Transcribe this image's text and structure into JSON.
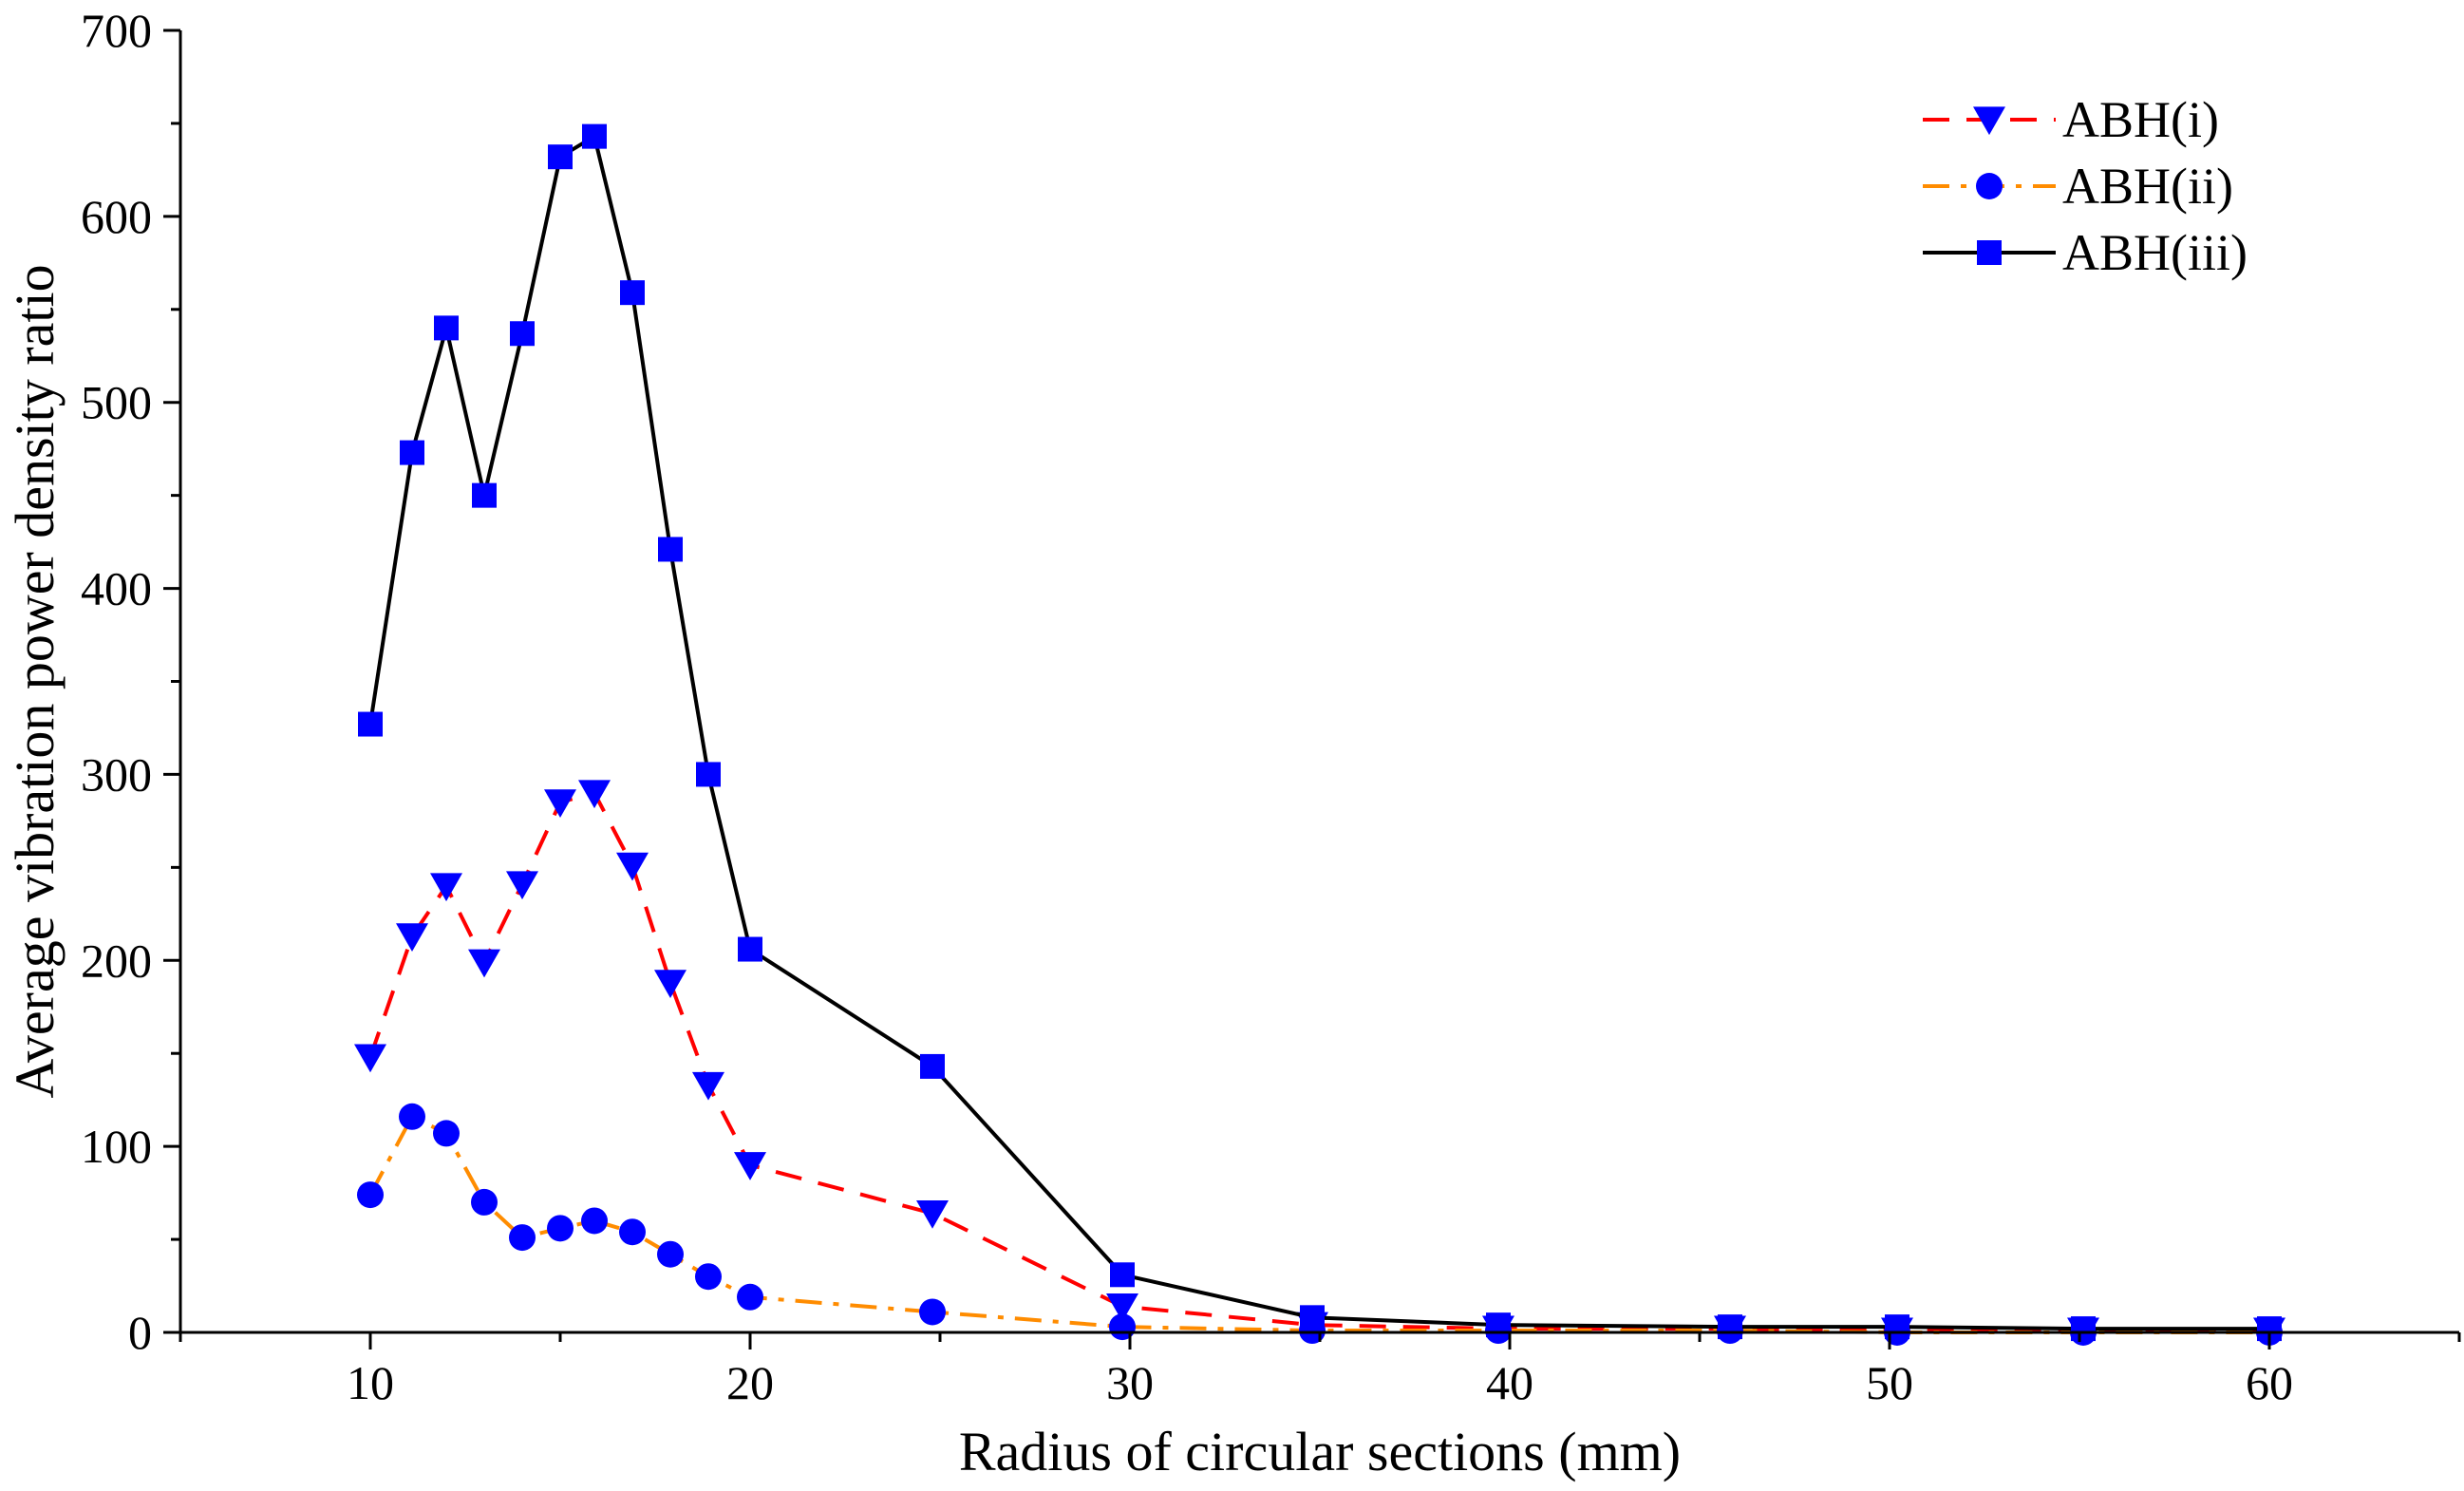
{
  "chart_data": {
    "type": "line",
    "title": "",
    "xlabel": "Radius of circular sections (mm)",
    "ylabel": "Average vibration power density ratio",
    "xlim": [
      5,
      65
    ],
    "ylim": [
      0,
      700
    ],
    "xticks": [
      10,
      20,
      30,
      40,
      50,
      60
    ],
    "yticks": [
      0,
      100,
      200,
      300,
      400,
      500,
      600,
      700
    ],
    "xtick_labels": [
      "10",
      "20",
      "30",
      "40",
      "50",
      "60"
    ],
    "ytick_labels": [
      "0",
      "100",
      "200",
      "300",
      "400",
      "500",
      "600",
      "700"
    ],
    "grid": false,
    "legend_position": "top-right",
    "series": [
      {
        "name": "ABH(i)",
        "color": "#ff0000",
        "marker_color": "#0000ff",
        "line_style": "dashed",
        "marker": "triangle-down",
        "points": [
          [
            10,
            148
          ],
          [
            11.1,
            213
          ],
          [
            12,
            240
          ],
          [
            13,
            199
          ],
          [
            14,
            241
          ],
          [
            15,
            285
          ],
          [
            15.9,
            290
          ],
          [
            16.9,
            251
          ],
          [
            17.9,
            188
          ],
          [
            18.9,
            133
          ],
          [
            20,
            90
          ],
          [
            24.8,
            64
          ],
          [
            29.8,
            14
          ],
          [
            34.8,
            4
          ],
          [
            39.7,
            2
          ],
          [
            45.8,
            2
          ],
          [
            50.2,
            1
          ],
          [
            55.1,
            1
          ],
          [
            60,
            1
          ]
        ]
      },
      {
        "name": "ABH(ii)",
        "color": "#ff8c00",
        "marker_color": "#0000ff",
        "line_style": "dashdot",
        "marker": "circle",
        "points": [
          [
            10,
            74
          ],
          [
            11.1,
            116
          ],
          [
            12,
            107
          ],
          [
            13,
            70
          ],
          [
            14,
            51
          ],
          [
            15,
            56
          ],
          [
            15.9,
            60
          ],
          [
            16.9,
            54
          ],
          [
            17.9,
            42
          ],
          [
            18.9,
            30
          ],
          [
            20,
            19
          ],
          [
            24.8,
            11
          ],
          [
            29.8,
            3
          ],
          [
            34.8,
            1
          ],
          [
            39.7,
            1
          ],
          [
            45.8,
            1
          ],
          [
            50.2,
            0
          ],
          [
            55.1,
            0
          ],
          [
            60,
            0
          ]
        ]
      },
      {
        "name": "ABH(iii)",
        "color": "#000000",
        "marker_color": "#0000ff",
        "line_style": "solid",
        "marker": "square",
        "points": [
          [
            10,
            327
          ],
          [
            11.1,
            473
          ],
          [
            12,
            540
          ],
          [
            13,
            450
          ],
          [
            14,
            537
          ],
          [
            15,
            632
          ],
          [
            15.9,
            643
          ],
          [
            16.9,
            559
          ],
          [
            17.9,
            421
          ],
          [
            18.9,
            300
          ],
          [
            20,
            206
          ],
          [
            24.8,
            143
          ],
          [
            29.8,
            31
          ],
          [
            34.8,
            8
          ],
          [
            39.7,
            4
          ],
          [
            45.8,
            3
          ],
          [
            50.2,
            3
          ],
          [
            55.1,
            2
          ],
          [
            60,
            2
          ]
        ]
      }
    ]
  }
}
